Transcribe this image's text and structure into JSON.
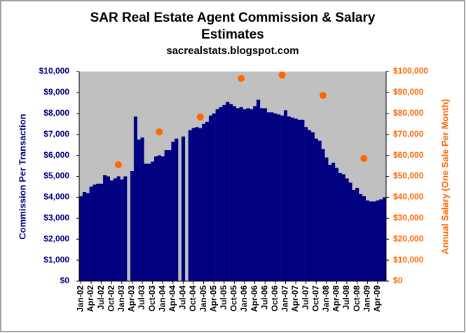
{
  "chart_data": {
    "type": "bar",
    "title": "SAR Real Estate Agent Commission & Salary Estimates",
    "subtitle": "sacrealstats.blogspot.com",
    "y_label": "Commission Per Transaction",
    "y2_label": "Annual Salary (One Sale Per Month)",
    "categories": [
      "Jan-02",
      null,
      null,
      "Apr-02",
      null,
      null,
      "Jul-02",
      null,
      null,
      "Oct-02",
      null,
      null,
      "Jan-03",
      null,
      null,
      "Apr-03",
      null,
      null,
      "Jul-03",
      null,
      null,
      "Oct-03",
      null,
      null,
      "Jan-04",
      null,
      null,
      "Apr-04",
      null,
      null,
      "Jul-04",
      null,
      null,
      "Oct-04",
      null,
      null,
      "Jan-05",
      null,
      null,
      "Apr-05",
      null,
      null,
      "Jul-05",
      null,
      null,
      "Oct-05",
      null,
      null,
      "Jan-06",
      null,
      null,
      "Apr-06",
      null,
      null,
      "Jul-06",
      null,
      null,
      "Oct-06",
      null,
      null,
      "Jan-07",
      null,
      null,
      "Apr-07",
      null,
      null,
      "Jul-07",
      null,
      null,
      "Oct-07",
      null,
      null,
      "Jan-08",
      null,
      null,
      "Apr-08",
      null,
      null,
      "Jul-08",
      null,
      null,
      "Oct-08",
      null,
      null,
      "Jan-09",
      null,
      null,
      "Apr-09",
      null,
      null
    ],
    "series": [
      {
        "type": "bar",
        "color": "#000080",
        "values": [
          4050,
          4250,
          4200,
          4500,
          4600,
          4650,
          4650,
          5050,
          5000,
          4800,
          4900,
          5000,
          4850,
          5000,
          null,
          5250,
          7850,
          6750,
          6850,
          5600,
          5600,
          5700,
          5950,
          6000,
          5950,
          6250,
          6250,
          6650,
          6800,
          null,
          6900,
          null,
          7200,
          7300,
          7350,
          7300,
          7500,
          7600,
          7900,
          8000,
          8200,
          8300,
          8400,
          8550,
          8450,
          8350,
          8250,
          8300,
          8200,
          8250,
          8200,
          8350,
          8650,
          8250,
          8250,
          8050,
          8050,
          8000,
          7950,
          7900,
          8150,
          7850,
          7800,
          7750,
          7700,
          7700,
          7350,
          7200,
          7100,
          6800,
          6700,
          6300,
          5900,
          5550,
          5650,
          5400,
          5150,
          5100,
          4900,
          4700,
          4350,
          4450,
          4150,
          4050,
          3850,
          3800,
          3800,
          3850,
          3900,
          4000
        ]
      },
      {
        "type": "scatter",
        "axis": "y2",
        "color": "#ff6600",
        "values": [
          null,
          null,
          null,
          null,
          null,
          null,
          null,
          null,
          null,
          null,
          null,
          55500,
          null,
          null,
          null,
          null,
          null,
          null,
          null,
          null,
          null,
          null,
          null,
          71200,
          null,
          null,
          null,
          null,
          null,
          null,
          null,
          null,
          null,
          null,
          null,
          78300,
          null,
          null,
          null,
          null,
          null,
          null,
          null,
          null,
          null,
          null,
          null,
          96700,
          null,
          null,
          null,
          null,
          null,
          null,
          null,
          null,
          null,
          null,
          null,
          98300,
          null,
          null,
          null,
          null,
          null,
          null,
          null,
          null,
          null,
          null,
          null,
          88600,
          null,
          null,
          null,
          null,
          null,
          null,
          null,
          null,
          null,
          null,
          null,
          58500,
          null,
          null,
          null,
          null,
          null,
          null
        ]
      }
    ],
    "ylim": [
      0,
      10000
    ],
    "yticks": [
      {
        "value": 0,
        "label": "$0"
      },
      {
        "value": 1000,
        "label": "$1,000"
      },
      {
        "value": 2000,
        "label": "$2,000"
      },
      {
        "value": 3000,
        "label": "$3,000"
      },
      {
        "value": 4000,
        "label": "$4,000"
      },
      {
        "value": 5000,
        "label": "$5,000"
      },
      {
        "value": 6000,
        "label": "$6,000"
      },
      {
        "value": 7000,
        "label": "$7,000"
      },
      {
        "value": 8000,
        "label": "$8,000"
      },
      {
        "value": 9000,
        "label": "$9,000"
      },
      {
        "value": 10000,
        "label": "$10,000"
      }
    ],
    "y2lim": [
      0,
      100000
    ],
    "y2ticks": [
      {
        "value": 0,
        "label": "$0"
      },
      {
        "value": 10000,
        "label": "$10,000"
      },
      {
        "value": 20000,
        "label": "$20,000"
      },
      {
        "value": 30000,
        "label": "$30,000"
      },
      {
        "value": 40000,
        "label": "$40,000"
      },
      {
        "value": 50000,
        "label": "$50,000"
      },
      {
        "value": 60000,
        "label": "$60,000"
      },
      {
        "value": 70000,
        "label": "$70,000"
      },
      {
        "value": 80000,
        "label": "$80,000"
      },
      {
        "value": 90000,
        "label": "$90,000"
      },
      {
        "value": 100000,
        "label": "$100,000"
      }
    ],
    "y_color": "#000080",
    "y2_color": "#ff6600",
    "plot_background": "#c0c0c0"
  }
}
